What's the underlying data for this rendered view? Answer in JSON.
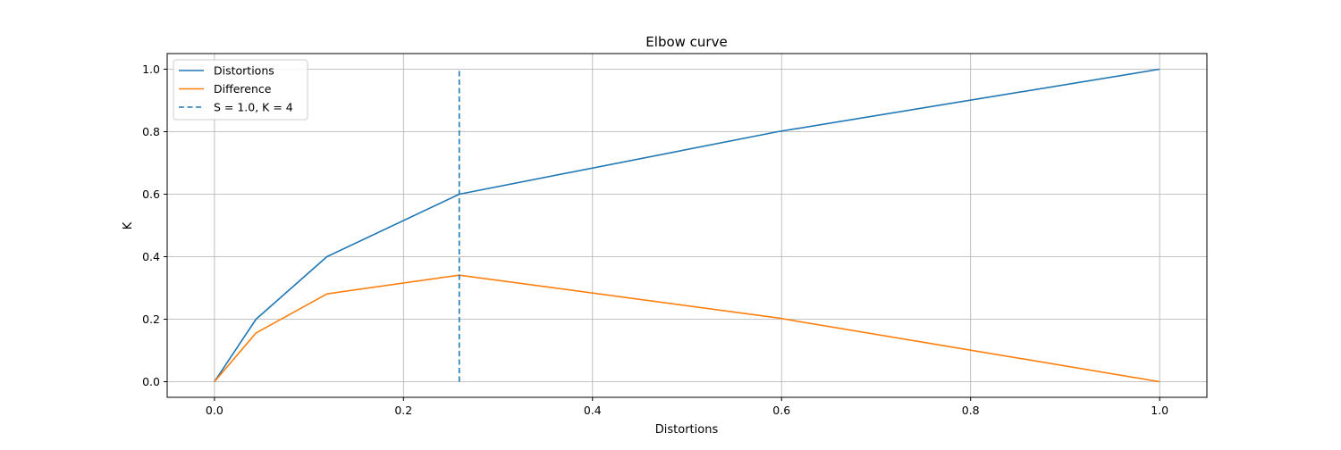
{
  "chart_data": {
    "type": "line",
    "title": "Elbow curve",
    "xlabel": "Distortions",
    "ylabel": "K",
    "xlim": [
      -0.05,
      1.05
    ],
    "ylim": [
      -0.05,
      1.05
    ],
    "xticks": [
      0.0,
      0.2,
      0.4,
      0.6,
      0.8,
      1.0
    ],
    "yticks": [
      0.0,
      0.2,
      0.4,
      0.6,
      0.8,
      1.0
    ],
    "tick_labels_x": [
      "0.0",
      "0.2",
      "0.4",
      "0.6",
      "0.8",
      "1.0"
    ],
    "tick_labels_y": [
      "0.0",
      "0.2",
      "0.4",
      "0.6",
      "0.8",
      "1.0"
    ],
    "grid": true,
    "legend_position": "top-left",
    "series": [
      {
        "name": "Distortions",
        "color": "#1f77b4",
        "style": "solid",
        "x": [
          0.0,
          0.044,
          0.119,
          0.259,
          0.596,
          1.0
        ],
        "y": [
          0.0,
          0.2,
          0.4,
          0.6,
          0.8,
          1.0
        ]
      },
      {
        "name": "Difference",
        "color": "#ff7f0e",
        "style": "solid",
        "x": [
          0.0,
          0.044,
          0.119,
          0.259,
          0.596,
          1.0
        ],
        "y": [
          0.0,
          0.156,
          0.281,
          0.341,
          0.204,
          0.0
        ]
      },
      {
        "name": "S = 1.0, K = 4",
        "color": "#1f77b4",
        "style": "dashed",
        "x": [
          0.259,
          0.259
        ],
        "y": [
          0.0,
          1.0
        ]
      }
    ]
  }
}
